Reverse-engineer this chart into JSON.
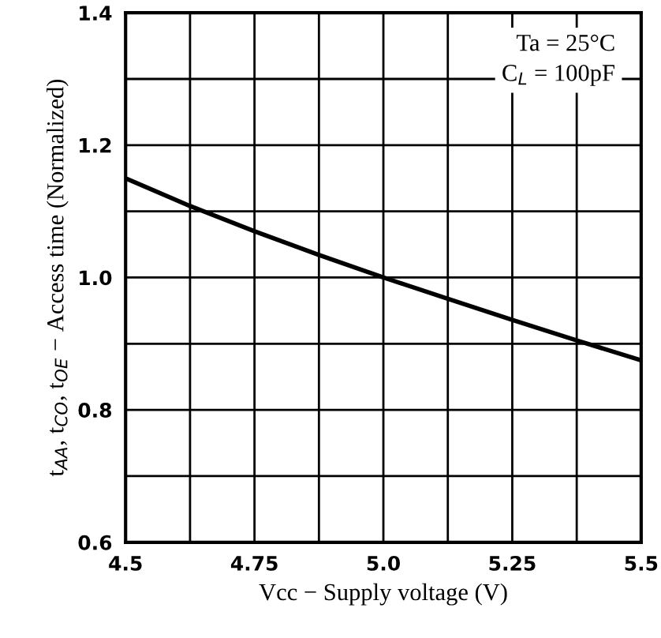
{
  "chart_data": {
    "type": "line",
    "xlabel": "Vcc − Supply voltage (V)",
    "ylabel": "t$_{AA}$, t$_{CO}$, t$_{OE}$ − Access time (Normalized)",
    "annotations": [
      "Ta = 25°C",
      "C$_{L}$ = 100pF"
    ],
    "x": [
      4.5,
      4.625,
      4.75,
      4.875,
      5.0,
      5.125,
      5.25,
      5.375,
      5.5
    ],
    "series": [
      {
        "color": "#000000",
        "values": [
          1.15,
          1.108,
          1.07,
          1.034,
          1.0,
          0.968,
          0.936,
          0.905,
          0.875
        ]
      }
    ],
    "xlim": [
      4.5,
      5.5
    ],
    "ylim": [
      0.6,
      1.4
    ],
    "xticks": [
      4.5,
      {
        "value": 4.625,
        "label": null
      },
      4.75,
      {
        "value": 4.875,
        "label": null
      },
      {
        "value": 5.0,
        "label": "5.0"
      },
      {
        "value": 5.125,
        "label": null
      },
      5.25,
      {
        "value": 5.375,
        "label": null
      },
      5.5
    ],
    "yticks": [
      0.6,
      {
        "value": 0.7,
        "label": null
      },
      0.8,
      {
        "value": 0.9,
        "label": null
      },
      {
        "value": 1.0,
        "label": "1.0"
      },
      {
        "value": 1.1,
        "label": null
      },
      1.2,
      {
        "value": 1.3,
        "label": null
      },
      1.4
    ],
    "grid": true,
    "marker": "none",
    "line_style": "solid"
  }
}
